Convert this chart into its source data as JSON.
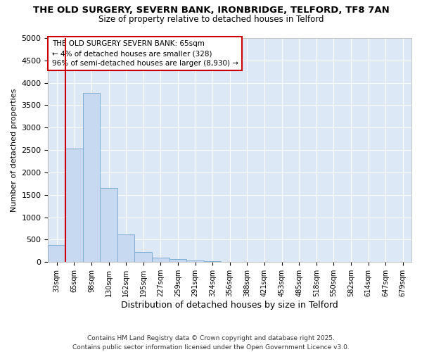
{
  "title_line1": "THE OLD SURGERY, SEVERN BANK, IRONBRIDGE, TELFORD, TF8 7AN",
  "title_line2": "Size of property relative to detached houses in Telford",
  "xlabel": "Distribution of detached houses by size in Telford",
  "ylabel": "Number of detached properties",
  "categories": [
    "33sqm",
    "65sqm",
    "98sqm",
    "130sqm",
    "162sqm",
    "195sqm",
    "227sqm",
    "259sqm",
    "291sqm",
    "324sqm",
    "356sqm",
    "388sqm",
    "421sqm",
    "453sqm",
    "485sqm",
    "518sqm",
    "550sqm",
    "582sqm",
    "614sqm",
    "647sqm",
    "679sqm"
  ],
  "values": [
    380,
    2540,
    3780,
    1650,
    620,
    230,
    105,
    60,
    40,
    15,
    5,
    0,
    0,
    0,
    0,
    0,
    0,
    0,
    0,
    0,
    0
  ],
  "bar_color": "#c6d9f0",
  "bar_edge_color": "#7eafd4",
  "annotation_text": "THE OLD SURGERY SEVERN BANK: 65sqm\n← 4% of detached houses are smaller (328)\n96% of semi-detached houses are larger (8,930) →",
  "annotation_box_facecolor": "#ffffff",
  "annotation_box_edgecolor": "#cc0000",
  "ylim": [
    0,
    5000
  ],
  "yticks": [
    0,
    500,
    1000,
    1500,
    2000,
    2500,
    3000,
    3500,
    4000,
    4500,
    5000
  ],
  "footer_line1": "Contains HM Land Registry data © Crown copyright and database right 2025.",
  "footer_line2": "Contains public sector information licensed under the Open Government Licence v3.0.",
  "fig_bg_color": "#ffffff",
  "plot_bg_color": "#dce8f5",
  "grid_color": "#ffffff",
  "redline_color": "#cc0000",
  "redline_bar_index": 1
}
